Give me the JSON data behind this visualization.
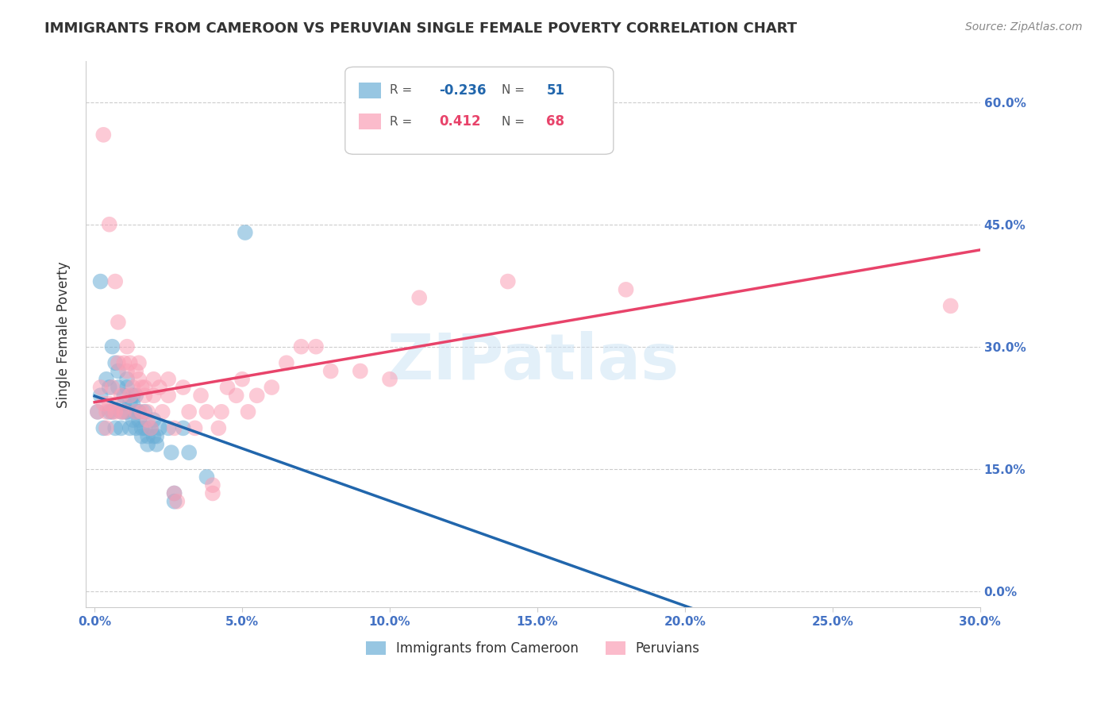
{
  "title": "IMMIGRANTS FROM CAMEROON VS PERUVIAN SINGLE FEMALE POVERTY CORRELATION CHART",
  "source": "Source: ZipAtlas.com",
  "ylabel_label": "Single Female Poverty",
  "legend_blue_R": "-0.236",
  "legend_blue_N": "51",
  "legend_pink_R": "0.412",
  "legend_pink_N": "68",
  "legend_label_blue": "Immigrants from Cameroon",
  "legend_label_pink": "Peruvians",
  "blue_color": "#6baed6",
  "pink_color": "#fa9fb5",
  "reg_blue_color": "#2166ac",
  "reg_pink_color": "#e8436a",
  "axis_label_color": "#4472C4",
  "blue_scatter_x": [
    0.001,
    0.002,
    0.003,
    0.002,
    0.004,
    0.005,
    0.005,
    0.006,
    0.006,
    0.007,
    0.007,
    0.008,
    0.008,
    0.009,
    0.009,
    0.01,
    0.01,
    0.01,
    0.011,
    0.011,
    0.011,
    0.012,
    0.012,
    0.013,
    0.013,
    0.013,
    0.014,
    0.014,
    0.014,
    0.015,
    0.015,
    0.016,
    0.016,
    0.017,
    0.017,
    0.018,
    0.018,
    0.019,
    0.02,
    0.02,
    0.021,
    0.021,
    0.022,
    0.025,
    0.026,
    0.027,
    0.027,
    0.03,
    0.032,
    0.038,
    0.051
  ],
  "blue_scatter_y": [
    0.22,
    0.38,
    0.2,
    0.24,
    0.26,
    0.22,
    0.25,
    0.3,
    0.22,
    0.28,
    0.2,
    0.25,
    0.27,
    0.22,
    0.2,
    0.23,
    0.22,
    0.24,
    0.22,
    0.25,
    0.26,
    0.23,
    0.2,
    0.24,
    0.21,
    0.23,
    0.22,
    0.24,
    0.2,
    0.22,
    0.21,
    0.2,
    0.19,
    0.22,
    0.2,
    0.19,
    0.18,
    0.2,
    0.19,
    0.21,
    0.19,
    0.18,
    0.2,
    0.2,
    0.17,
    0.12,
    0.11,
    0.2,
    0.17,
    0.14,
    0.44
  ],
  "pink_scatter_x": [
    0.001,
    0.002,
    0.003,
    0.003,
    0.004,
    0.004,
    0.005,
    0.005,
    0.006,
    0.006,
    0.007,
    0.007,
    0.008,
    0.008,
    0.009,
    0.009,
    0.01,
    0.01,
    0.011,
    0.011,
    0.012,
    0.012,
    0.013,
    0.014,
    0.014,
    0.015,
    0.015,
    0.016,
    0.016,
    0.017,
    0.017,
    0.018,
    0.018,
    0.019,
    0.02,
    0.02,
    0.022,
    0.023,
    0.025,
    0.025,
    0.027,
    0.027,
    0.028,
    0.03,
    0.032,
    0.034,
    0.036,
    0.038,
    0.04,
    0.04,
    0.042,
    0.043,
    0.045,
    0.048,
    0.05,
    0.052,
    0.055,
    0.06,
    0.065,
    0.07,
    0.075,
    0.08,
    0.09,
    0.1,
    0.11,
    0.14,
    0.18,
    0.29
  ],
  "pink_scatter_y": [
    0.22,
    0.25,
    0.56,
    0.23,
    0.2,
    0.22,
    0.45,
    0.23,
    0.22,
    0.25,
    0.38,
    0.22,
    0.28,
    0.33,
    0.22,
    0.24,
    0.22,
    0.28,
    0.3,
    0.27,
    0.28,
    0.24,
    0.25,
    0.27,
    0.22,
    0.26,
    0.28,
    0.25,
    0.22,
    0.24,
    0.25,
    0.22,
    0.21,
    0.2,
    0.26,
    0.24,
    0.25,
    0.22,
    0.26,
    0.24,
    0.2,
    0.12,
    0.11,
    0.25,
    0.22,
    0.2,
    0.24,
    0.22,
    0.13,
    0.12,
    0.2,
    0.22,
    0.25,
    0.24,
    0.26,
    0.22,
    0.24,
    0.25,
    0.28,
    0.3,
    0.3,
    0.27,
    0.27,
    0.26,
    0.36,
    0.38,
    0.37,
    0.35
  ]
}
